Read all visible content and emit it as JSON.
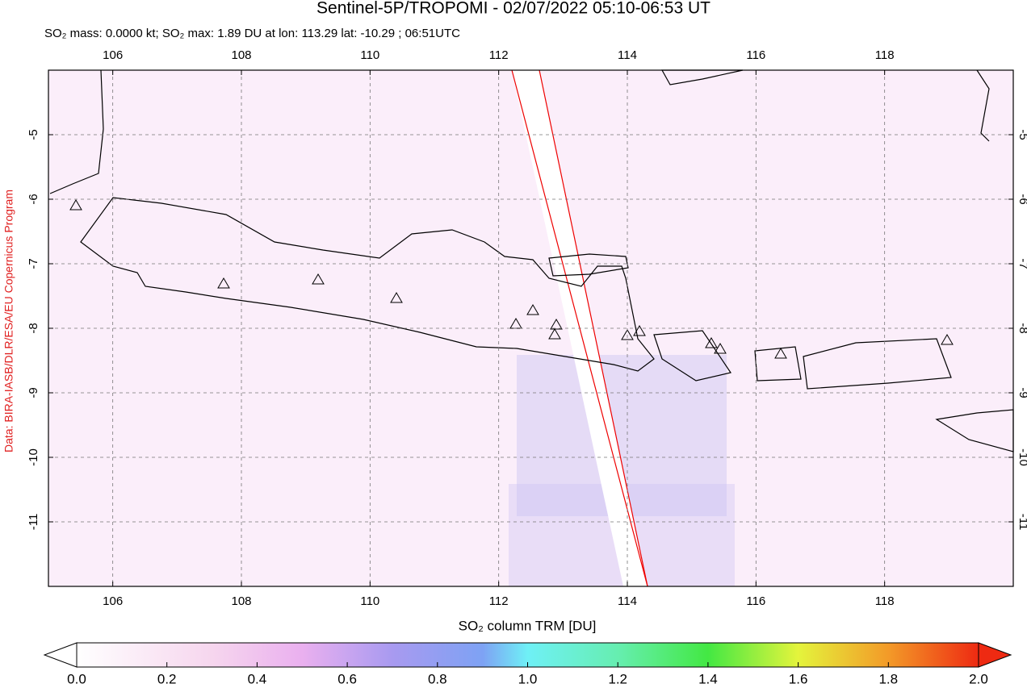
{
  "map": {
    "title": "Sentinel-5P/TROPOMI - 02/07/2022 05:10-06:53 UT",
    "subtitle": "SO₂ mass: 0.0000 kt; SO₂ max: 1.89 DU at lon: 113.29 lat: -10.29 ; 06:51UTC",
    "credit": "Data: BIRA-IASB/DLR/ESA/EU Copernicus Program",
    "xlim": [
      105,
      120
    ],
    "ylim": [
      -12,
      -4
    ],
    "xticks": [
      106,
      108,
      110,
      112,
      114,
      116,
      118
    ],
    "yticks": [
      -5,
      -6,
      -7,
      -8,
      -9,
      -10,
      -11
    ],
    "colorbar": {
      "label": "SO₂ column TRM [DU]",
      "lim": [
        0,
        2
      ],
      "ticks": [
        {
          "value": 0,
          "label": "0.0"
        },
        {
          "value": 0.2,
          "label": "0.2"
        },
        {
          "value": 0.4,
          "label": "0.4"
        },
        {
          "value": 0.6,
          "label": "0.6"
        },
        {
          "value": 0.8,
          "label": "0.8"
        },
        {
          "value": 1,
          "label": "1.0"
        },
        {
          "value": 1.2,
          "label": "1.2"
        },
        {
          "value": 1.4,
          "label": "1.4"
        },
        {
          "value": 1.6,
          "label": "1.6"
        },
        {
          "value": 1.8,
          "label": "1.8"
        },
        {
          "value": 2,
          "label": "2.0"
        }
      ]
    }
  }
}
